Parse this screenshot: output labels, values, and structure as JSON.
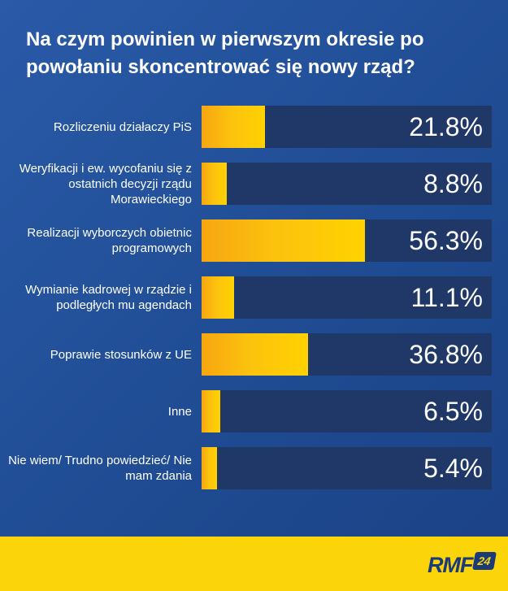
{
  "chart_data": {
    "type": "bar",
    "orientation": "horizontal",
    "title": "Na czym powinien w pierwszym okresie po powołaniu skoncentrować się nowy rząd?",
    "categories": [
      "Rozliczeniu działaczy PiS",
      "Weryfikacji i ew. wycofaniu się z ostatnich decyzji rządu Morawieckiego",
      "Realizacji wyborczych obietnic programowych",
      "Wymianie kadrowej w rządzie i podległych mu agendach",
      "Poprawie stosunków z UE",
      "Inne",
      "Nie wiem/ Trudno powiedzieć/ Nie mam zdania"
    ],
    "values": [
      21.8,
      8.8,
      56.3,
      11.1,
      36.8,
      6.5,
      5.4
    ],
    "value_labels": [
      "21.8%",
      "8.8%",
      "56.3%",
      "11.1%",
      "36.8%",
      "6.5%",
      "5.4%"
    ],
    "unit": "%",
    "xlim": [
      0,
      100
    ],
    "grid": false,
    "legend": "none"
  },
  "colors": {
    "background": "#2353a0",
    "bar_track": "#1f3868",
    "bar_fill": "#fcc20e",
    "text": "#ffffff",
    "footer": "#fbd40a",
    "logo": "#1a3a7a"
  },
  "footer": {
    "logo_text": "RMF",
    "logo_badge": "24"
  }
}
